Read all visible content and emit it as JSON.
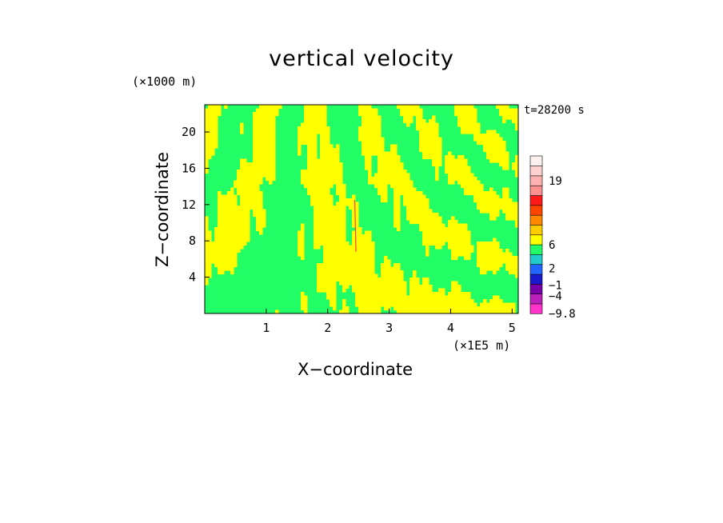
{
  "chart_data": {
    "type": "heatmap",
    "title": "vertical velocity",
    "xlabel": "X−coordinate",
    "ylabel": "Z−coordinate",
    "x_unit": "(×1E5 m)",
    "y_unit": "(×1000 m)",
    "time_label": "t=28200 s",
    "xlim": [
      0.0,
      5.1
    ],
    "ylim": [
      0.0,
      23.0
    ],
    "x_ticks": [
      1,
      2,
      3,
      4,
      5
    ],
    "y_ticks": [
      4,
      8,
      12,
      16,
      20
    ],
    "field_colors": {
      "positive": "#ffff00",
      "negative": "#22ff66",
      "core": "#ff4040"
    },
    "colorbar": {
      "levels": [
        {
          "color": "#ff33cc"
        },
        {
          "color": "#bb22bb"
        },
        {
          "color": "#7700aa"
        },
        {
          "color": "#1a1acc"
        },
        {
          "color": "#2266ff"
        },
        {
          "color": "#22cccc"
        },
        {
          "color": "#22ff66"
        },
        {
          "color": "#ffff00"
        },
        {
          "color": "#ffcc00"
        },
        {
          "color": "#ff8800"
        },
        {
          "color": "#ff4400"
        },
        {
          "color": "#ff1a1a"
        },
        {
          "color": "#ff9090"
        },
        {
          "color": "#ffb0b0"
        },
        {
          "color": "#ffd0d0"
        },
        {
          "color": "#fff0f0"
        }
      ],
      "labels": [
        "19",
        "6",
        "2",
        "−1",
        "−4",
        "−9.8"
      ]
    }
  }
}
